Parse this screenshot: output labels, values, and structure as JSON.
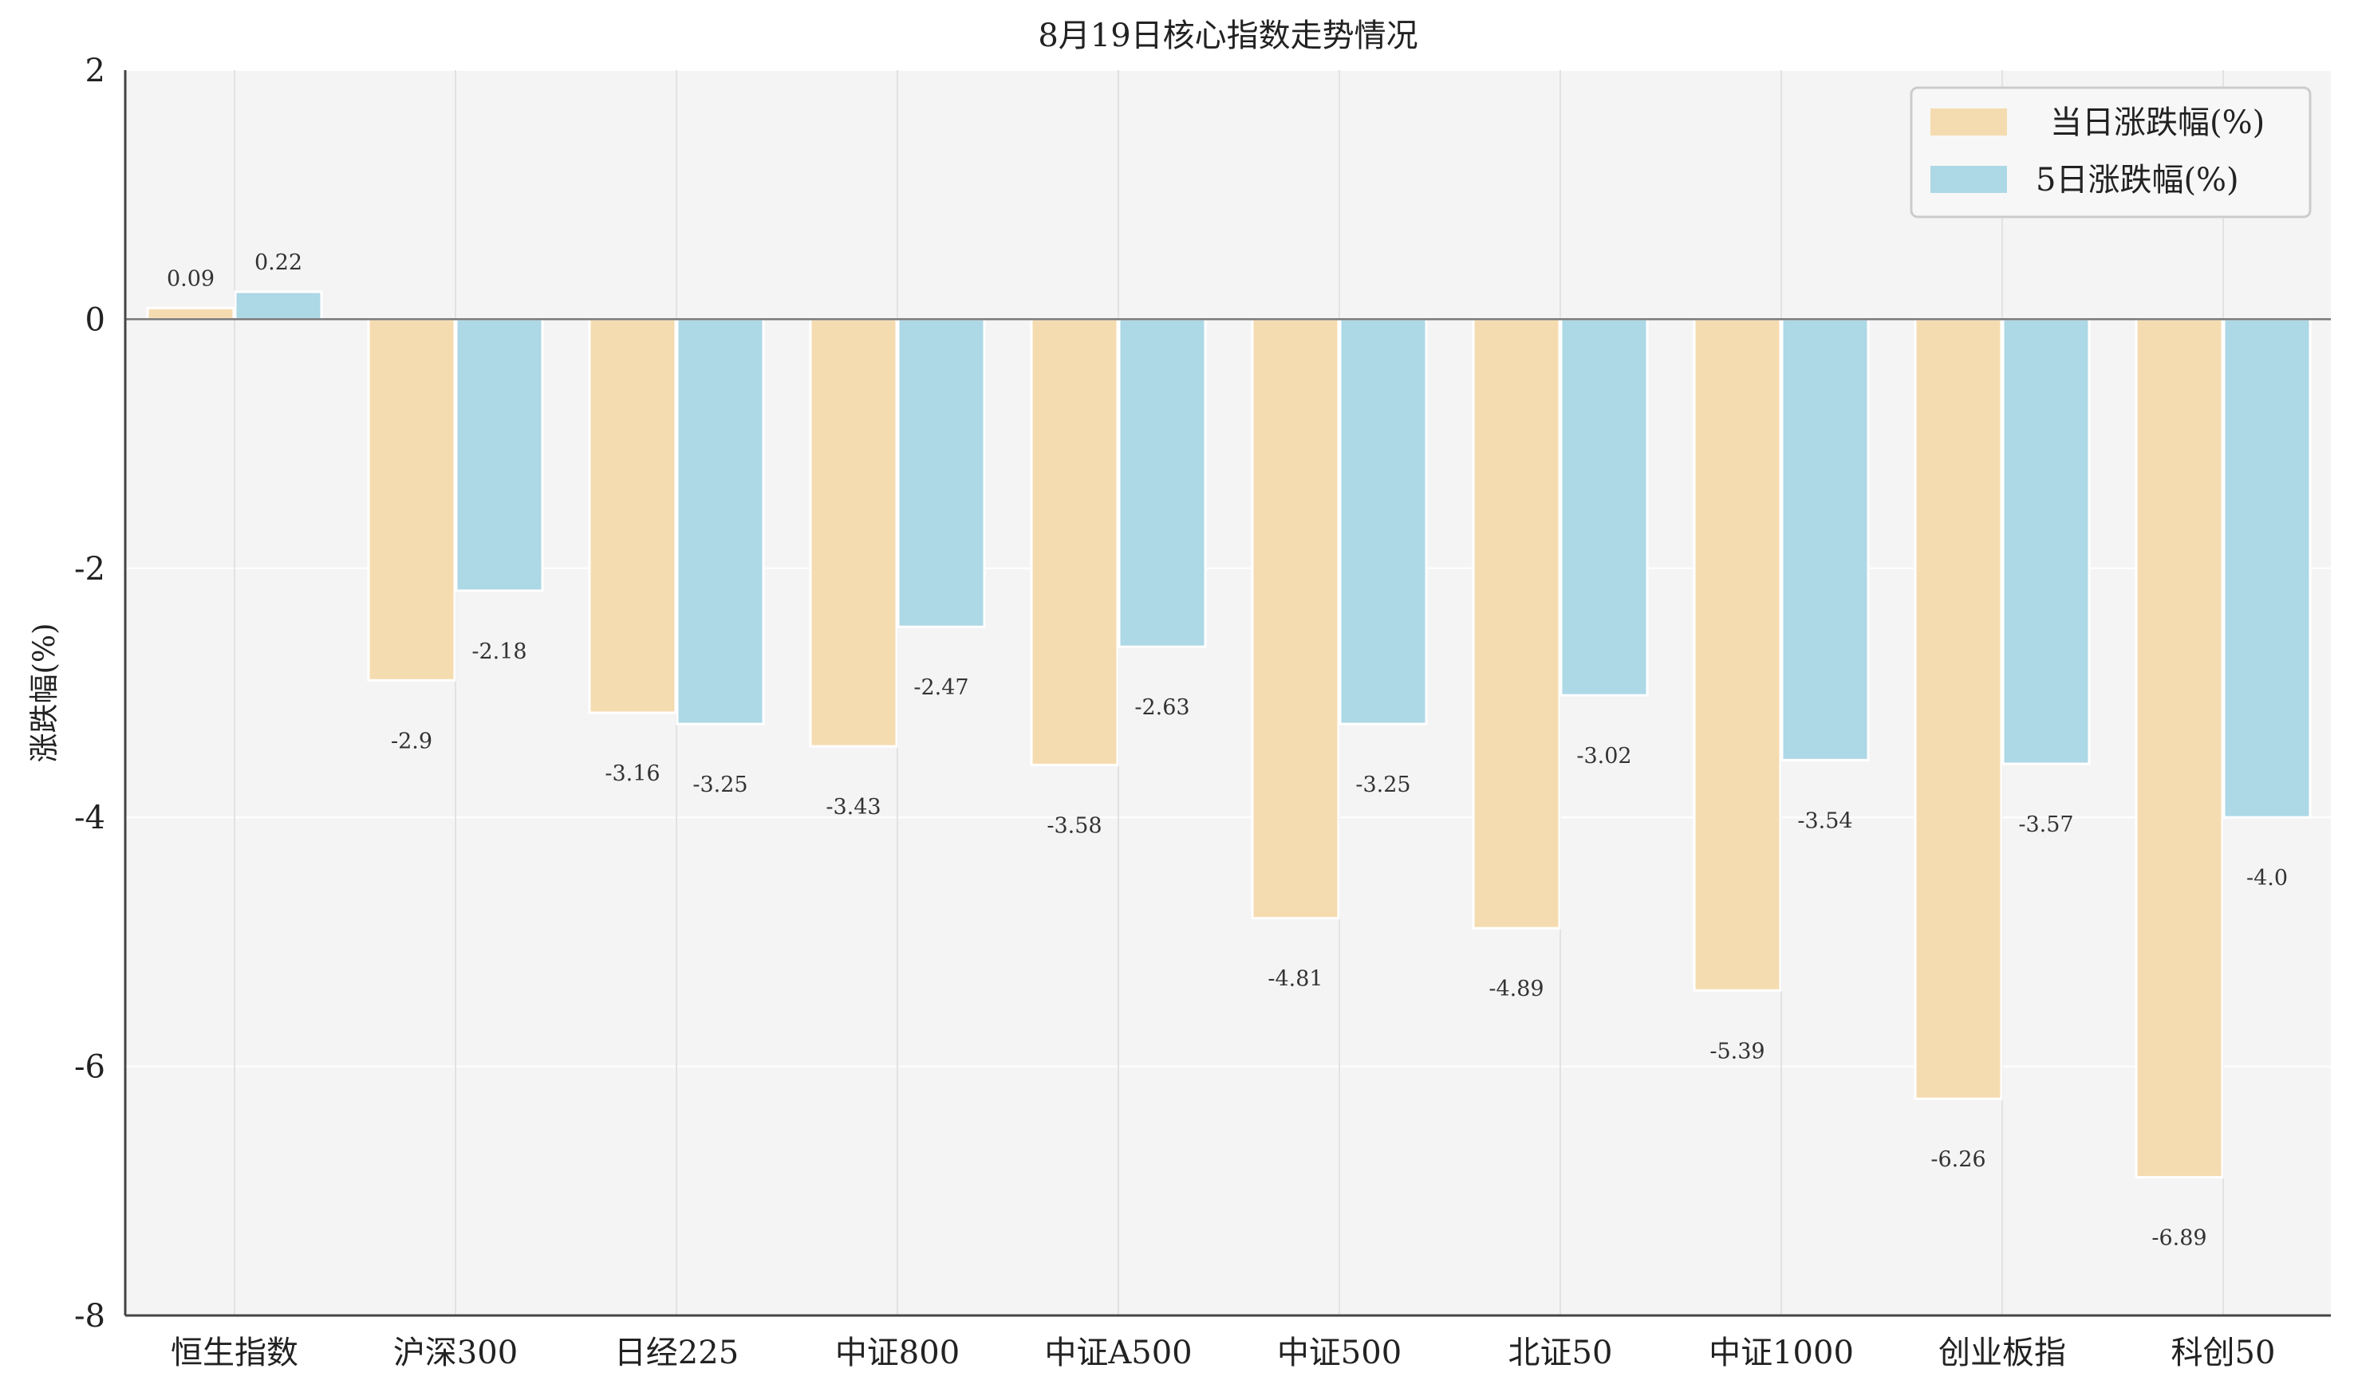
{
  "chart_data": {
    "type": "bar",
    "title": "8月19日核心指数走势情况",
    "xlabel": "",
    "ylabel": "涨跌幅(%)",
    "ylim": [
      -8,
      2
    ],
    "yticks": [
      2,
      0,
      -2,
      -4,
      -6,
      -8
    ],
    "grid": true,
    "legend_position": "top-right",
    "categories": [
      "恒生指数",
      "沪深300",
      "日经225",
      "中证800",
      "中证A500",
      "中证500",
      "北证50",
      "中证1000",
      "创业板指",
      "科创50"
    ],
    "series": [
      {
        "name": "当日涨跌幅(%)",
        "color": "#f5dcb0",
        "values": [
          0.09,
          -2.9,
          -3.16,
          -3.43,
          -3.58,
          -4.81,
          -4.89,
          -5.39,
          -6.26,
          -6.89
        ],
        "labels": [
          "0.09",
          "-2.9",
          "-3.16",
          "-3.43",
          "-3.58",
          "-4.81",
          "-4.89",
          "-5.39",
          "-6.26",
          "-6.89"
        ]
      },
      {
        "name": "5日涨跌幅(%)",
        "color": "#add8e6",
        "values": [
          0.22,
          -2.18,
          -3.25,
          -2.47,
          -2.63,
          -3.25,
          -3.02,
          -3.54,
          -3.57,
          -4.0
        ],
        "labels": [
          "0.22",
          "-2.18",
          "-3.25",
          "-2.47",
          "-2.63",
          "-3.25",
          "-3.02",
          "-3.54",
          "-3.57",
          "-4.0"
        ]
      }
    ]
  },
  "colors": {
    "plot_background": "#f4f4f4",
    "gridline": "#ffffff",
    "zero_line": "#777777",
    "axis": "#444444"
  }
}
